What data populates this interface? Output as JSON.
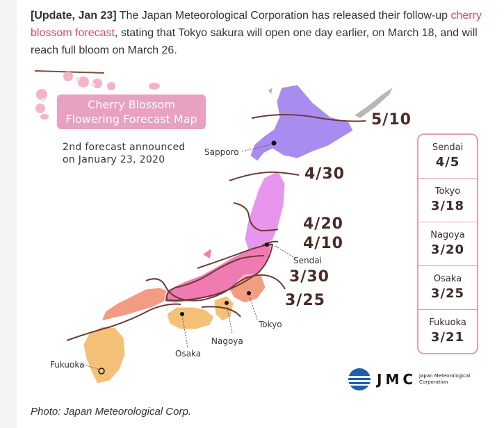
{
  "intro": {
    "update_tag": "[Update, Jan 23]",
    "text_before_link": " The Japan Meteorological Corporation has released their follow-up ",
    "link_text": "cherry blossom forecast",
    "text_after_link": ", stating that Tokyo sakura will open one day earlier, on March 18, and will reach full bloom on March 26.",
    "link_color": "#e0455d"
  },
  "map": {
    "title_line1": "Cherry Blossom",
    "title_line2": "Flowering Forecast Map",
    "subtitle_line1": "2nd forecast announced",
    "subtitle_line2": "on January 23, 2020",
    "cities": {
      "sapporo": "Sapporo",
      "sendai": "Sendai",
      "tokyo": "Tokyo",
      "nagoya": "Nagoya",
      "osaka": "Osaka",
      "fukuoka": "Fukuoka"
    },
    "contours": [
      "5/10",
      "4/30",
      "4/20",
      "4/10",
      "3/30",
      "3/25"
    ],
    "colors": {
      "hokkaido": "#a98cf0",
      "tohoku": "#e895ee",
      "honshu_central": "#f07bb3",
      "southwest": "#f29c84",
      "kyushu": "#f5c078",
      "title_box": "#e8a1c2",
      "panel_border": "#e69bb8"
    }
  },
  "forecast_panel": [
    {
      "city": "Sendai",
      "date": "4/5"
    },
    {
      "city": "Tokyo",
      "date": "3/18"
    },
    {
      "city": "Nagoya",
      "date": "3/20"
    },
    {
      "city": "Osaka",
      "date": "3/25"
    },
    {
      "city": "Fukuoka",
      "date": "3/21"
    }
  ],
  "logo": {
    "abbr": "JMC",
    "line1": "Japan Meteorological",
    "line2": "Corporation"
  },
  "caption": "Photo: Japan Meteorological Corp."
}
